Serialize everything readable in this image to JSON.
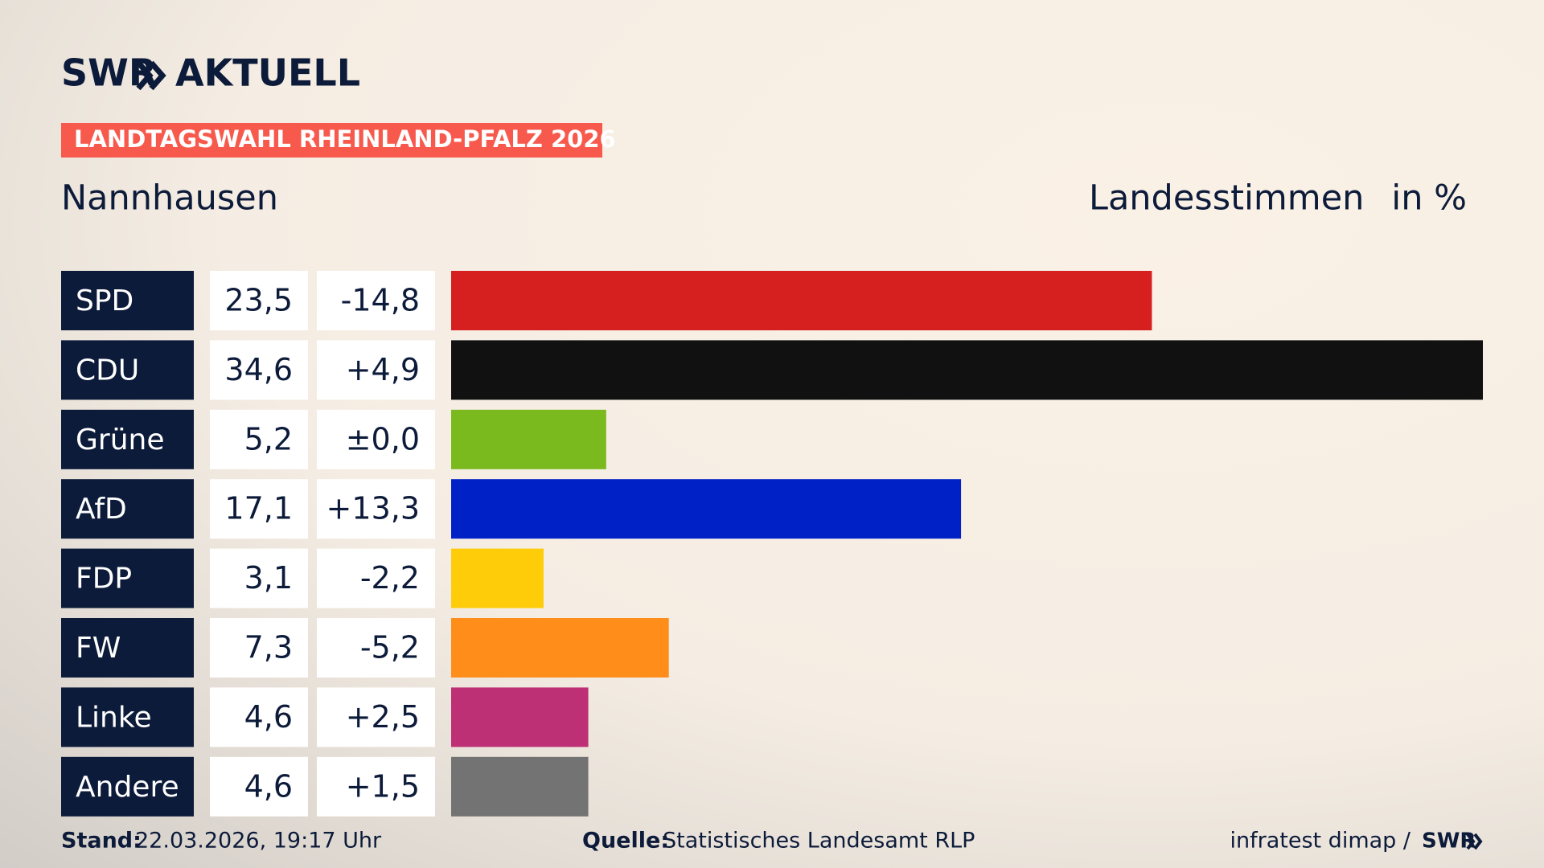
{
  "chart_data": {
    "type": "bar",
    "orientation": "horizontal",
    "brand": "SWR",
    "brand_product": "AKTUELL",
    "tag": "LANDTAGSWAHL RHEINLAND-PFALZ 2026",
    "title": "Nannhausen",
    "vote_type": "Landesstimmen",
    "unit_label": "in %",
    "categories": [
      "SPD",
      "CDU",
      "Grüne",
      "AfD",
      "FDP",
      "FW",
      "Linke",
      "Andere"
    ],
    "values": [
      23.5,
      34.6,
      5.2,
      17.1,
      3.1,
      7.3,
      4.6,
      4.6
    ],
    "value_labels": [
      "23,5",
      "34,6",
      "5,2",
      "17,1",
      "3,1",
      "7,3",
      "4,6",
      "4,6"
    ],
    "changes": [
      -14.8,
      4.9,
      0,
      13.3,
      -2.2,
      -5.2,
      2.5,
      1.5
    ],
    "change_labels": [
      "-14,8",
      "+4,9",
      "±0,0",
      "+13,3",
      "-2,2",
      "-5,2",
      "+2,5",
      "+1,5"
    ],
    "colors": [
      "#d61f1f",
      "#111111",
      "#7aba1e",
      "#0021c6",
      "#ffcc0a",
      "#ff8d1a",
      "#bd3075",
      "#737373"
    ],
    "xlim": [
      0,
      34.6
    ],
    "footer": {
      "stand_label": "Stand:",
      "stand": "22.03.2026, 19:17 Uhr",
      "source_label": "Quelle:",
      "source": "Statistisches Landesamt RLP",
      "credit": "infratest dimap /",
      "credit_brand": "SWR"
    }
  }
}
